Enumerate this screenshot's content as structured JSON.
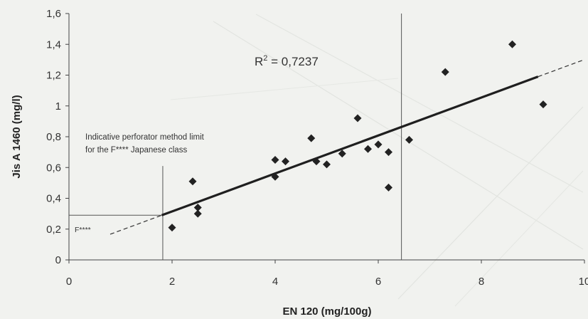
{
  "chart_data": {
    "type": "scatter",
    "title": "",
    "xlabel": "EN 120 (mg/100g)",
    "ylabel": "Jis A 1460 (mg/l)",
    "xlim": [
      0,
      10
    ],
    "ylim": [
      0,
      1.6
    ],
    "x_ticks": [
      "0",
      "2",
      "4",
      "6",
      "8",
      "10"
    ],
    "y_ticks": [
      "0",
      "0,2",
      "0,4",
      "0,6",
      "0,8",
      "1",
      "1,2",
      "1,4",
      "1,6"
    ],
    "grid": false,
    "series": [
      {
        "marker": "diamond",
        "color": "#222222",
        "points": [
          {
            "x": 2.0,
            "y": 0.21
          },
          {
            "x": 2.4,
            "y": 0.51
          },
          {
            "x": 2.5,
            "y": 0.34
          },
          {
            "x": 2.5,
            "y": 0.3
          },
          {
            "x": 4.0,
            "y": 0.65
          },
          {
            "x": 4.0,
            "y": 0.54
          },
          {
            "x": 4.2,
            "y": 0.64
          },
          {
            "x": 4.7,
            "y": 0.79
          },
          {
            "x": 4.8,
            "y": 0.64
          },
          {
            "x": 5.0,
            "y": 0.62
          },
          {
            "x": 5.3,
            "y": 0.69
          },
          {
            "x": 5.6,
            "y": 0.92
          },
          {
            "x": 5.8,
            "y": 0.72
          },
          {
            "x": 6.0,
            "y": 0.75
          },
          {
            "x": 6.2,
            "y": 0.7
          },
          {
            "x": 6.2,
            "y": 0.47
          },
          {
            "x": 6.6,
            "y": 0.78
          },
          {
            "x": 7.3,
            "y": 1.22
          },
          {
            "x": 8.6,
            "y": 1.4
          },
          {
            "x": 9.2,
            "y": 1.01
          }
        ]
      }
    ],
    "trendline": {
      "type": "linear",
      "solid_from_x": 1.8,
      "solid_to_x": 9.1,
      "dashed_from_x": 0.8,
      "dashed_to_x": 10.0,
      "y_at": [
        {
          "x": 1.8,
          "y": 0.29
        },
        {
          "x": 9.1,
          "y": 1.19
        }
      ]
    },
    "reference_lines": [
      {
        "orientation": "vertical",
        "x": 6.45,
        "from_y": 0,
        "to_y": 1.6
      },
      {
        "orientation": "vertical",
        "x": 1.82,
        "from_y": 0,
        "to_y": 0.61
      },
      {
        "orientation": "horizontal",
        "y": 0.29,
        "from_x": 0,
        "to_x": 1.82
      }
    ],
    "r2_prefix": "R",
    "r2_sup": "2",
    "r2_value": " = 0,7237",
    "annotation_line1": "Indicative perforator method limit",
    "annotation_line2": "for the  F**** Japanese class",
    "region_label": "F****"
  }
}
